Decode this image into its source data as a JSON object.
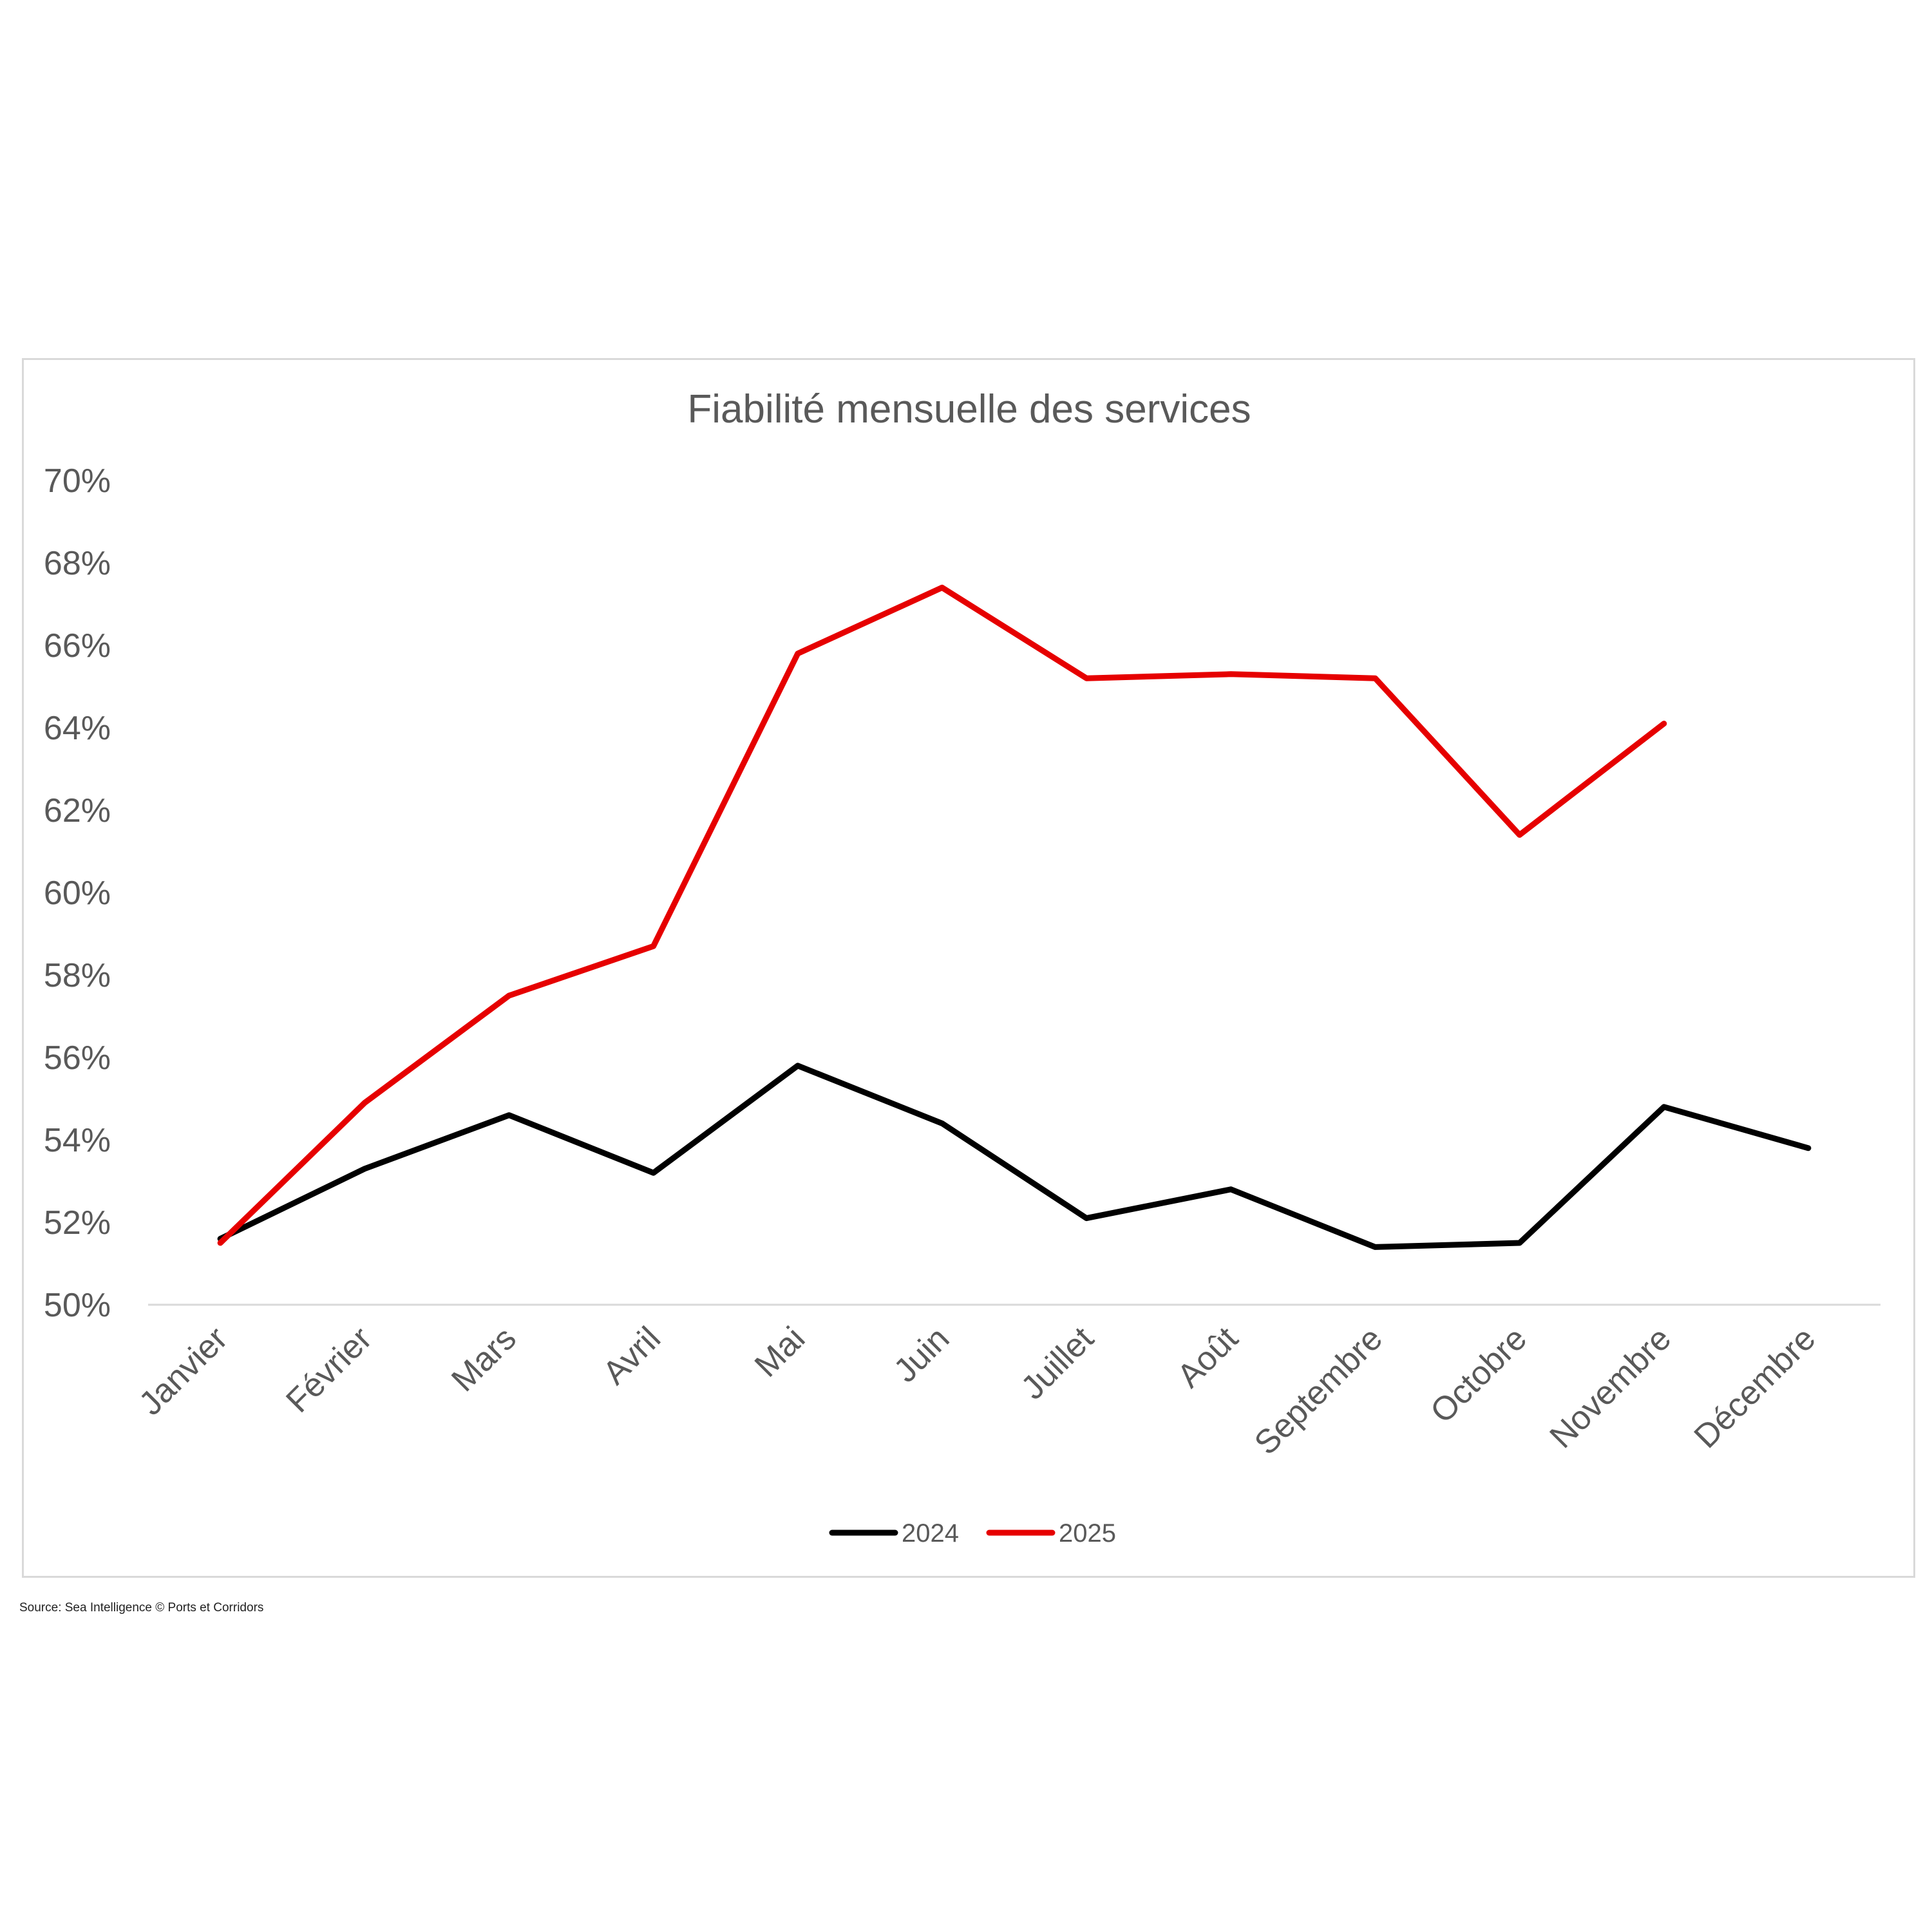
{
  "chart_data": {
    "type": "line",
    "title": "Fiabilité mensuelle des services",
    "xlabel": "",
    "ylabel": "",
    "categories": [
      "Janvier",
      "Février",
      "Mars",
      "Avril",
      "Mai",
      "Juin",
      "Juillet",
      "Août",
      "Septembre",
      "Octobre",
      "Novembre",
      "Décembre"
    ],
    "ylim": [
      50,
      70
    ],
    "yticks": [
      50,
      52,
      54,
      56,
      58,
      60,
      62,
      64,
      66,
      68,
      70
    ],
    "ytick_labels": [
      "50%",
      "52%",
      "54%",
      "56%",
      "58%",
      "60%",
      "62%",
      "64%",
      "66%",
      "68%",
      "70%"
    ],
    "grid": false,
    "legend_position": "bottom",
    "series": [
      {
        "name": "2024",
        "color": "#000000",
        "values": [
          51.6,
          53.3,
          54.6,
          53.2,
          55.8,
          54.4,
          52.1,
          52.8,
          51.4,
          51.5,
          54.8,
          53.8
        ]
      },
      {
        "name": "2025",
        "color": "#e60000",
        "values": [
          51.5,
          54.9,
          57.5,
          58.7,
          65.8,
          67.4,
          65.2,
          65.3,
          65.2,
          61.4,
          64.1,
          null
        ]
      }
    ]
  },
  "source": "Source: Sea Intelligence © Ports et Corridors"
}
